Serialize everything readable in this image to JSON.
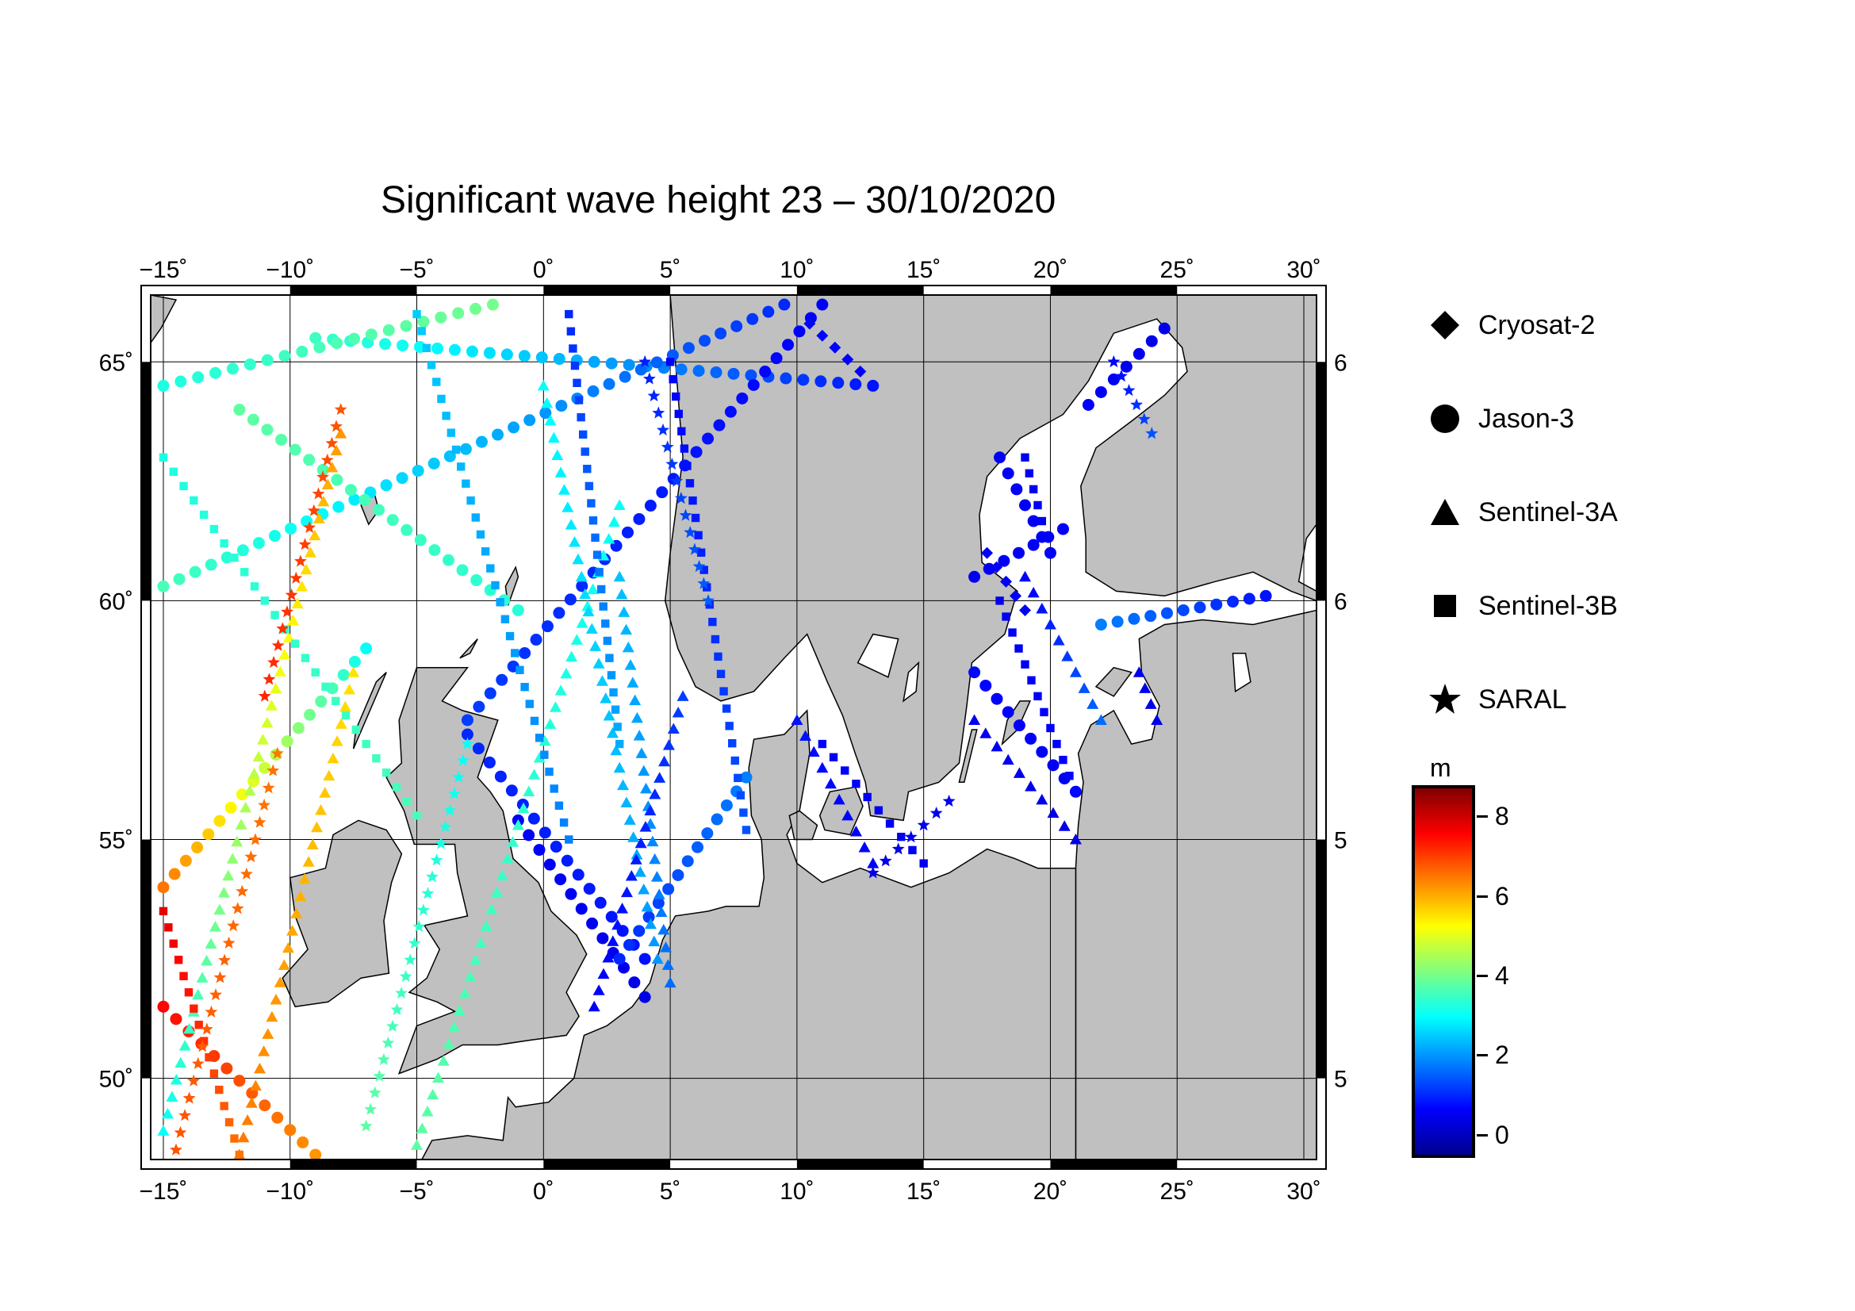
{
  "title": "Significant wave height 23 – 30/10/2020",
  "map": {
    "lon_range": [
      -15.5,
      30.5
    ],
    "lat_range": [
      48.3,
      66.4
    ],
    "lon_ticks": [
      -15,
      -10,
      -5,
      0,
      5,
      10,
      15,
      20,
      25,
      30
    ],
    "lon_tick_labels": [
      "−15˚",
      "−10˚",
      "−5˚",
      "0˚",
      "5˚",
      "10˚",
      "15˚",
      "20˚",
      "25˚",
      "30˚"
    ],
    "lat_ticks": [
      50,
      55,
      60,
      65
    ],
    "lat_tick_labels": [
      "50˚",
      "55˚",
      "60˚",
      "65˚"
    ],
    "land_color": "#c0c0c0",
    "sea_color": "#ffffff"
  },
  "legend": [
    {
      "name": "Cryosat-2",
      "icon": "diamond-icon"
    },
    {
      "name": "Jason-3",
      "icon": "circle-icon"
    },
    {
      "name": "Sentinel-3A",
      "icon": "triangle-icon"
    },
    {
      "name": "Sentinel-3B",
      "icon": "square-icon"
    },
    {
      "name": "SARAL",
      "icon": "star-icon"
    }
  ],
  "colorbar": {
    "unit": "m",
    "range": [
      -0.5,
      8.7
    ],
    "tick_values": [
      0,
      2,
      4,
      6,
      8
    ],
    "tick_labels": [
      "0",
      "2",
      "4",
      "6",
      "8"
    ],
    "colors": [
      "#00008f",
      "#0000ff",
      "#0080ff",
      "#00ffff",
      "#80ff80",
      "#ffff00",
      "#ff8000",
      "#ff0000",
      "#800000"
    ]
  },
  "chart_data": {
    "type": "scatter",
    "title": "Significant wave height 23 – 30/10/2020",
    "value_unit": "m",
    "series": [
      {
        "name": "Jason-3",
        "marker": "circle",
        "tracks": [
          {
            "from": [
              -9,
              65.5
            ],
            "to": [
              13,
              64.5
            ],
            "h_from": 3.5,
            "h_to": 0.8
          },
          {
            "from": [
              -15,
              64.5
            ],
            "to": [
              -2,
              66.2
            ],
            "h_from": 3.2,
            "h_to": 4.0
          },
          {
            "from": [
              -15,
              60.3
            ],
            "to": [
              9.5,
              66.2
            ],
            "h_from": 3.6,
            "h_to": 1.0
          },
          {
            "from": [
              -3,
              57.5
            ],
            "to": [
              11,
              66.2
            ],
            "h_from": 1.2,
            "h_to": 0.6
          },
          {
            "from": [
              -12,
              64
            ],
            "to": [
              -1,
              59.8
            ],
            "h_from": 3.8,
            "h_to": 3.3
          },
          {
            "from": [
              -15,
              54
            ],
            "to": [
              -7,
              59
            ],
            "h_from": 6.5,
            "h_to": 3.0
          },
          {
            "from": [
              -15,
              51.5
            ],
            "to": [
              -9,
              48.4
            ],
            "h_from": 7.5,
            "h_to": 6.2
          },
          {
            "from": [
              -1,
              55.4
            ],
            "to": [
              4,
              51.7
            ],
            "h_from": 0.6,
            "h_to": 0.4
          },
          {
            "from": [
              -3,
              57.2
            ],
            "to": [
              4,
              52.5
            ],
            "h_from": 1.0,
            "h_to": 0.8
          },
          {
            "from": [
              3,
              52.5
            ],
            "to": [
              8,
              56.3
            ],
            "h_from": 1.0,
            "h_to": 1.8
          },
          {
            "from": [
              20.5,
              61.5
            ],
            "to": [
              17,
              60.5
            ],
            "h_from": 0.6,
            "h_to": 0.5
          },
          {
            "from": [
              18,
              63
            ],
            "to": [
              20,
              61
            ],
            "h_from": 0.5,
            "h_to": 0.6
          },
          {
            "from": [
              21,
              56
            ],
            "to": [
              17,
              58.5
            ],
            "h_from": 0.5,
            "h_to": 0.7
          },
          {
            "from": [
              22,
              59.5
            ],
            "to": [
              28.5,
              60.1
            ],
            "h_from": 1.8,
            "h_to": 0.8
          },
          {
            "from": [
              21.5,
              64.1
            ],
            "to": [
              24.5,
              65.7
            ],
            "h_from": 0.6,
            "h_to": 0.4
          }
        ]
      },
      {
        "name": "Sentinel-3A",
        "marker": "triangle",
        "tracks": [
          {
            "from": [
              -15,
              48.9
            ],
            "to": [
              -8,
              63.5
            ],
            "h_from": 3.0,
            "h_to": 6.2
          },
          {
            "from": [
              -12,
              48.4
            ],
            "to": [
              -7.5,
              58.5
            ],
            "h_from": 6.5,
            "h_to": 5.5
          },
          {
            "from": [
              -5,
              48.6
            ],
            "to": [
              3,
              62
            ],
            "h_from": 3.8,
            "h_to": 3.0
          },
          {
            "from": [
              0,
              64.5
            ],
            "to": [
              4.5,
              52.5
            ],
            "h_from": 3.0,
            "h_to": 2.0
          },
          {
            "from": [
              3,
              60.5
            ],
            "to": [
              5,
              52
            ],
            "h_from": 2.4,
            "h_to": 1.6
          },
          {
            "from": [
              5.5,
              58
            ],
            "to": [
              2,
              51.5
            ],
            "h_from": 1.2,
            "h_to": 0.6
          },
          {
            "from": [
              10,
              57.5
            ],
            "to": [
              13,
              54.5
            ],
            "h_from": 0.8,
            "h_to": 0.6
          },
          {
            "from": [
              17,
              57.5
            ],
            "to": [
              21,
              55
            ],
            "h_from": 0.5,
            "h_to": 0.4
          },
          {
            "from": [
              19,
              60.5
            ],
            "to": [
              22,
              57.5
            ],
            "h_from": 0.6,
            "h_to": 1.6
          },
          {
            "from": [
              23.5,
              58.5
            ],
            "to": [
              24.2,
              57.5
            ],
            "h_from": 0.5,
            "h_to": 0.4
          }
        ]
      },
      {
        "name": "Sentinel-3B",
        "marker": "square",
        "tracks": [
          {
            "from": [
              -15,
              53.5
            ],
            "to": [
              -12,
              48.4
            ],
            "h_from": 7.8,
            "h_to": 6.5
          },
          {
            "from": [
              -15,
              63
            ],
            "to": [
              -5,
              55.5
            ],
            "h_from": 3.2,
            "h_to": 3.6
          },
          {
            "from": [
              -5,
              66
            ],
            "to": [
              1,
              55
            ],
            "h_from": 2.5,
            "h_to": 1.8
          },
          {
            "from": [
              1,
              66
            ],
            "to": [
              3,
              57
            ],
            "h_from": 1.0,
            "h_to": 2.2
          },
          {
            "from": [
              5,
              65
            ],
            "to": [
              8,
              55.2
            ],
            "h_from": 0.6,
            "h_to": 1.4
          },
          {
            "from": [
              11,
              57
            ],
            "to": [
              15,
              54.5
            ],
            "h_from": 0.6,
            "h_to": 0.5
          },
          {
            "from": [
              18,
              60
            ],
            "to": [
              21,
              56
            ],
            "h_from": 0.5,
            "h_to": 0.7
          },
          {
            "from": [
              19,
              63
            ],
            "to": [
              20,
              61
            ],
            "h_from": 0.5,
            "h_to": 0.6
          }
        ]
      },
      {
        "name": "SARAL",
        "marker": "star",
        "tracks": [
          {
            "from": [
              -14.5,
              48.5
            ],
            "to": [
              -10.5,
              56.8
            ],
            "h_from": 6.8,
            "h_to": 6.5
          },
          {
            "from": [
              -11,
              58
            ],
            "to": [
              -8,
              64
            ],
            "h_from": 7.2,
            "h_to": 6.8
          },
          {
            "from": [
              -7,
              49
            ],
            "to": [
              -3,
              57
            ],
            "h_from": 3.8,
            "h_to": 3.0
          },
          {
            "from": [
              4,
              65
            ],
            "to": [
              6.5,
              60
            ],
            "h_from": 0.9,
            "h_to": 1.5
          },
          {
            "from": [
              13,
              54.3
            ],
            "to": [
              16,
              55.8
            ],
            "h_from": 0.4,
            "h_to": 0.5
          },
          {
            "from": [
              22.5,
              65
            ],
            "to": [
              24,
              63.5
            ],
            "h_from": 0.6,
            "h_to": 1.4
          }
        ]
      },
      {
        "name": "Cryosat-2",
        "marker": "diamond",
        "tracks": [
          {
            "from": [
              10.5,
              65.8
            ],
            "to": [
              12.5,
              64.8
            ],
            "h_from": 0.7,
            "h_to": 0.6
          },
          {
            "from": [
              17.5,
              61
            ],
            "to": [
              19,
              59.8
            ],
            "h_from": 0.6,
            "h_to": 0.5
          }
        ]
      }
    ]
  }
}
